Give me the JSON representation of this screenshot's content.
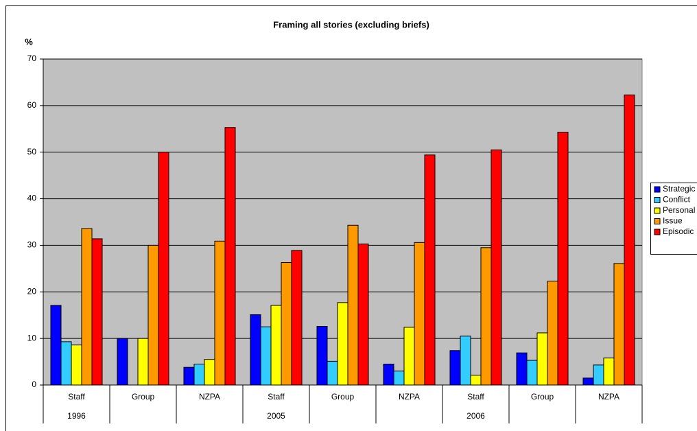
{
  "chart_data": {
    "type": "bar",
    "title": "Framing all stories (excluding briefs)",
    "ylabel": "%",
    "categories": [
      "Staff",
      "Group",
      "NZPA",
      "Staff",
      "Group",
      "NZPA",
      "Staff",
      "Group",
      "NZPA"
    ],
    "groups": [
      "1996",
      null,
      null,
      "2005",
      null,
      null,
      "2006",
      null,
      null
    ],
    "series": [
      {
        "name": "Strategic",
        "color": "#0000ff",
        "values": [
          17.1,
          10,
          3.8,
          15.1,
          12.6,
          4.5,
          7.4,
          6.9,
          1.5
        ]
      },
      {
        "name": "Conflict",
        "color": "#33ccff",
        "values": [
          9.3,
          0,
          4.5,
          12.5,
          5.1,
          3.0,
          10.5,
          5.3,
          4.3
        ]
      },
      {
        "name": "Personal",
        "color": "#ffff00",
        "values": [
          8.6,
          10,
          5.5,
          17.1,
          17.7,
          12.4,
          2.1,
          11.2,
          5.8
        ]
      },
      {
        "name": "Issue",
        "color": "#ff9900",
        "values": [
          33.6,
          30,
          30.9,
          26.3,
          34.3,
          30.6,
          29.5,
          22.3,
          26.1
        ]
      },
      {
        "name": "Episodic",
        "color": "#ff0000",
        "values": [
          31.4,
          50,
          55.3,
          28.9,
          30.3,
          49.4,
          50.5,
          54.3,
          62.3
        ]
      }
    ],
    "ylim": [
      0,
      70
    ],
    "yticks": [
      0,
      10,
      20,
      30,
      40,
      50,
      60,
      70
    ],
    "grid": true,
    "legend": "right"
  }
}
